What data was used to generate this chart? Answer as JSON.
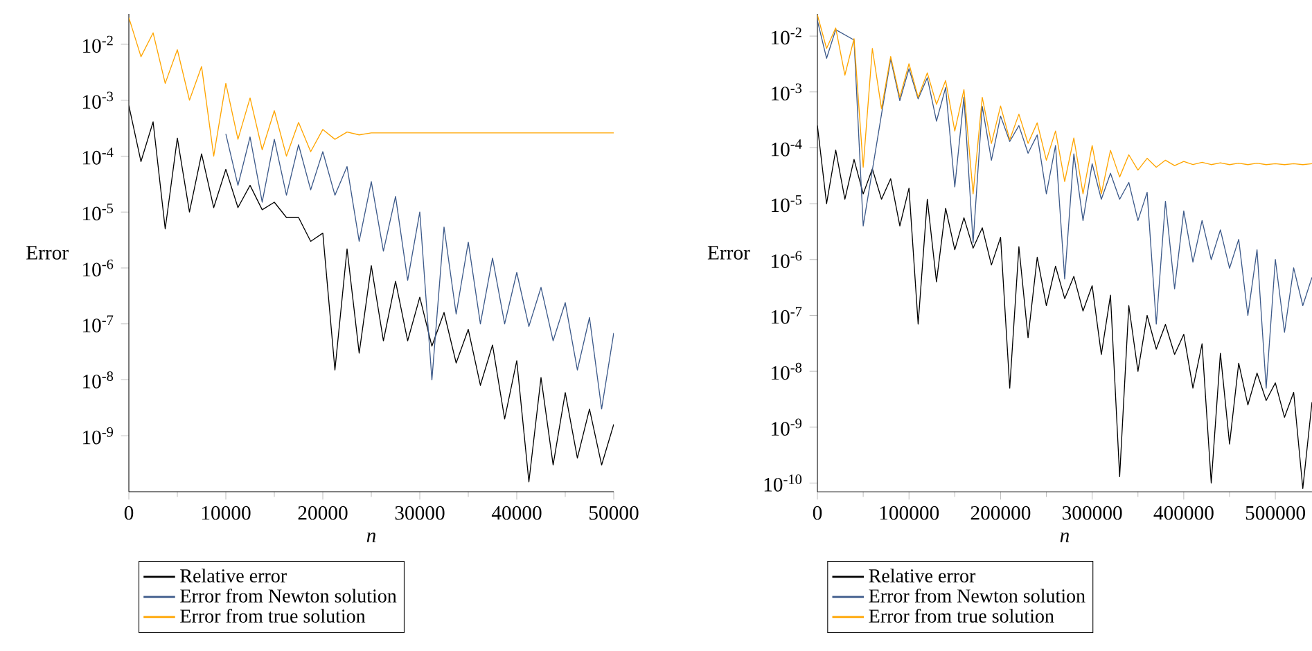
{
  "chart_data": [
    {
      "type": "line",
      "xlabel": "n",
      "ylabel": "Error",
      "log": "y",
      "legend": "bottom",
      "line_style": "solid",
      "xlim": [
        0,
        50000
      ],
      "ylim": [
        1e-10,
        0.035
      ],
      "xticks": [
        0,
        10000,
        20000,
        30000,
        40000,
        50000
      ],
      "yticks": [
        {
          "value": 0.01,
          "label": "10$^{-2}$"
        },
        {
          "value": 0.001,
          "label": "10$^{-3}$"
        },
        {
          "value": 0.0001,
          "label": "10$^{-4}$"
        },
        {
          "value": 1e-05,
          "label": "10$^{-5}$"
        },
        {
          "value": 1e-06,
          "label": "10$^{-6}$"
        },
        {
          "value": 1e-07,
          "label": "10$^{-7}$"
        },
        {
          "value": 1e-08,
          "label": "10$^{-8}$"
        },
        {
          "value": 1e-09,
          "label": "10$^{-9}$"
        }
      ],
      "series": [
        {
          "name": "Relative error",
          "color": "#000000",
          "x": [
            0,
            1250,
            2500,
            3750,
            5000,
            6250,
            7500,
            8750,
            10000,
            11250,
            12500,
            13750,
            15000,
            16250,
            17500,
            18750,
            20000,
            21250,
            22500,
            23750,
            25000,
            26250,
            27500,
            28750,
            30000,
            31250,
            32500,
            33750,
            35000,
            36250,
            37500,
            38750,
            40000,
            41250,
            42500,
            43750,
            45000,
            46250,
            47500,
            48750,
            50000
          ],
          "values": [
            0.0008,
            8e-05,
            0.00041,
            5e-06,
            0.00021,
            1e-05,
            0.00011,
            1.2e-05,
            5.8e-05,
            1.2e-05,
            3e-05,
            1.1e-05,
            1.5e-05,
            8e-06,
            8e-06,
            3e-06,
            4.2e-06,
            1.5e-08,
            2.2e-06,
            3e-08,
            1.1e-06,
            5e-08,
            5.8e-07,
            5e-08,
            3e-07,
            4e-08,
            1.6e-07,
            2e-08,
            8e-08,
            8e-09,
            4.2e-08,
            2e-09,
            2.2e-08,
            1.5e-10,
            1.1e-08,
            3e-10,
            5.9e-09,
            4e-10,
            3e-09,
            3e-10,
            1.6e-09
          ]
        },
        {
          "name": "Error from Newton solution",
          "color": "#3d5a8a",
          "x": [
            10000,
            11250,
            12500,
            13750,
            15000,
            16250,
            17500,
            18750,
            20000,
            21250,
            22500,
            23750,
            25000,
            26250,
            27500,
            28750,
            30000,
            31250,
            32500,
            33750,
            35000,
            36250,
            37500,
            38750,
            40000,
            41250,
            42500,
            43750,
            45000,
            46250,
            47500,
            48750,
            50000
          ],
          "values": [
            0.00025,
            3e-05,
            0.00022,
            1.5e-05,
            0.0002,
            2e-05,
            0.00016,
            2.5e-05,
            0.00012,
            2e-05,
            6.5e-05,
            3e-06,
            3.5e-05,
            2e-06,
            1.9e-05,
            6e-07,
            1e-05,
            1e-08,
            5.4e-06,
            1.5e-07,
            2.9e-06,
            1e-07,
            1.5e-06,
            1e-07,
            8.3e-07,
            9e-08,
            4.5e-07,
            5e-08,
            2.4e-07,
            1.5e-08,
            1.3e-07,
            3e-09,
            6.9e-08
          ]
        },
        {
          "name": "Error from true solution",
          "color": "#ffa500",
          "x": [
            0,
            1250,
            2500,
            3750,
            5000,
            6250,
            7500,
            8750,
            10000,
            11250,
            12500,
            13750,
            15000,
            16250,
            17500,
            18750,
            20000,
            21250,
            22500,
            23750,
            25000,
            30000,
            35000,
            40000,
            45000,
            50000
          ],
          "values": [
            0.03,
            0.006,
            0.016,
            0.002,
            0.008,
            0.001,
            0.004,
            0.0001,
            0.002,
            0.0002,
            0.0011,
            0.00013,
            0.00065,
            0.0001,
            0.0004,
            0.00012,
            0.0003,
            0.0002,
            0.00027,
            0.00024,
            0.00026,
            0.00026,
            0.00026,
            0.00026,
            0.00026,
            0.00026
          ]
        }
      ]
    },
    {
      "type": "line",
      "xlabel": "n",
      "ylabel": "Error",
      "log": "y",
      "legend": "bottom",
      "line_style": "solid",
      "xlim": [
        0,
        540000
      ],
      "ylim": [
        7e-11,
        0.025
      ],
      "xticks": [
        0,
        100000,
        200000,
        300000,
        400000,
        500000
      ],
      "yticks": [
        {
          "value": 0.01,
          "label": "10$^{-2}$"
        },
        {
          "value": 0.001,
          "label": "10$^{-3}$"
        },
        {
          "value": 0.0001,
          "label": "10$^{-4}$"
        },
        {
          "value": 1e-05,
          "label": "10$^{-5}$"
        },
        {
          "value": 1e-06,
          "label": "10$^{-6}$"
        },
        {
          "value": 1e-07,
          "label": "10$^{-7}$"
        },
        {
          "value": 1e-08,
          "label": "10$^{-8}$"
        },
        {
          "value": 1e-09,
          "label": "10$^{-9}$"
        },
        {
          "value": 1e-10,
          "label": "10$^{-10}$"
        }
      ],
      "series": [
        {
          "name": "Relative error",
          "color": "#000000",
          "x": [
            0,
            10000,
            20000,
            30000,
            40000,
            50000,
            60000,
            70000,
            80000,
            90000,
            100000,
            110000,
            120000,
            130000,
            140000,
            150000,
            160000,
            170000,
            180000,
            190000,
            200000,
            210000,
            220000,
            230000,
            240000,
            250000,
            260000,
            270000,
            280000,
            290000,
            300000,
            310000,
            320000,
            330000,
            340000,
            350000,
            360000,
            370000,
            380000,
            390000,
            400000,
            410000,
            420000,
            430000,
            440000,
            450000,
            460000,
            470000,
            480000,
            490000,
            500000,
            510000,
            520000,
            530000,
            540000
          ],
          "values": [
            0.00025,
            1e-05,
            9.1e-05,
            1.2e-05,
            6.2e-05,
            1.5e-05,
            4.2e-05,
            1.2e-05,
            2.8e-05,
            4e-06,
            1.9e-05,
            7e-08,
            1.2e-05,
            4e-07,
            8.3e-06,
            1.5e-06,
            5.6e-06,
            1.6e-06,
            3.7e-06,
            8e-07,
            2.5e-06,
            5e-09,
            1.7e-06,
            4e-08,
            1.1e-06,
            1.5e-07,
            7.6e-07,
            2e-07,
            5e-07,
            1.2e-07,
            3.4e-07,
            2e-08,
            2.3e-07,
            1.3e-10,
            1.5e-07,
            1e-08,
            1e-07,
            2.5e-08,
            6.9e-08,
            2e-08,
            4.6e-08,
            5e-09,
            3.1e-08,
            1e-10,
            2.1e-08,
            5e-10,
            1.4e-08,
            2.5e-09,
            9.3e-09,
            3e-09,
            6.2e-09,
            1.5e-09,
            4.2e-09,
            8e-11,
            2.8e-09
          ]
        },
        {
          "name": "Error from Newton solution",
          "color": "#3d5a8a",
          "x": [
            0,
            10000,
            20000,
            30000,
            40000,
            50000,
            60000,
            70000,
            80000,
            90000,
            100000,
            110000,
            120000,
            130000,
            140000,
            150000,
            160000,
            170000,
            180000,
            190000,
            200000,
            210000,
            220000,
            230000,
            240000,
            250000,
            260000,
            270000,
            280000,
            290000,
            300000,
            310000,
            320000,
            330000,
            340000,
            350000,
            360000,
            370000,
            380000,
            390000,
            400000,
            410000,
            420000,
            430000,
            440000,
            450000,
            460000,
            470000,
            480000,
            490000,
            500000,
            510000,
            520000,
            530000,
            540000
          ],
          "values": [
            0.019,
            0.004,
            0.013,
            null,
            0.0085,
            4e-06,
            null,
            0.0004,
            0.0039,
            0.0007,
            0.0026,
            0.00075,
            0.0018,
            0.0003,
            0.0012,
            2e-05,
            0.00081,
            2e-06,
            0.00055,
            6e-05,
            0.00037,
            0.00013,
            0.00025,
            8e-05,
            0.00017,
            1.5e-05,
            0.00011,
            4.5e-07,
            7.8e-05,
            5e-06,
            5.2e-05,
            1.2e-05,
            3.5e-05,
            1.2e-05,
            2.4e-05,
            5e-06,
            1.6e-05,
            7e-08,
            1.1e-05,
            3e-07,
            7.4e-06,
            9e-07,
            5e-06,
            1e-06,
            3.4e-06,
            7e-07,
            2.3e-06,
            1e-07,
            1.5e-06,
            5e-09,
            1e-06,
            5e-08,
            7.1e-07,
            1.5e-07,
            4.8e-07
          ]
        },
        {
          "name": "Error from true solution",
          "color": "#ffa500",
          "x": [
            0,
            10000,
            20000,
            30000,
            40000,
            50000,
            60000,
            70000,
            80000,
            90000,
            100000,
            110000,
            120000,
            130000,
            140000,
            150000,
            160000,
            170000,
            180000,
            190000,
            200000,
            210000,
            220000,
            230000,
            240000,
            250000,
            260000,
            270000,
            280000,
            290000,
            300000,
            310000,
            320000,
            330000,
            340000,
            350000,
            360000,
            370000,
            380000,
            390000,
            400000,
            410000,
            420000,
            430000,
            440000,
            450000,
            460000,
            470000,
            480000,
            490000,
            500000,
            510000,
            520000,
            530000,
            540000
          ],
          "values": [
            0.024,
            0.006,
            0.014,
            0.002,
            0.009,
            4.5e-05,
            0.006,
            0.0005,
            0.0043,
            0.0008,
            0.0032,
            0.0008,
            0.0022,
            0.0006,
            0.0016,
            0.0002,
            0.0011,
            1.5e-05,
            0.0008,
            0.00012,
            0.00056,
            0.00014,
            0.0004,
            0.00012,
            0.00028,
            6e-05,
            0.0002,
            2.5e-05,
            0.00015,
            1.5e-05,
            0.00011,
            1.5e-05,
            9e-05,
            3e-05,
            7.5e-05,
            4e-05,
            6.5e-05,
            4.5e-05,
            6e-05,
            4.8e-05,
            5.7e-05,
            5e-05,
            5.5e-05,
            5e-05,
            5.4e-05,
            5e-05,
            5.3e-05,
            5e-05,
            5.3e-05,
            5e-05,
            5.2e-05,
            5e-05,
            5.2e-05,
            5e-05,
            5.2e-05
          ]
        }
      ]
    }
  ]
}
